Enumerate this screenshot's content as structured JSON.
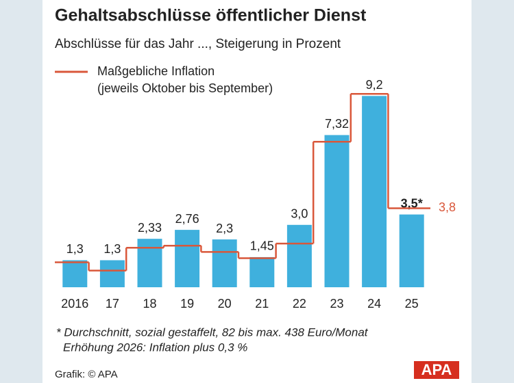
{
  "chart_data": {
    "type": "bar",
    "title": "Gehaltsabschlüsse öffentlicher Dienst",
    "subtitle": "Abschlüsse für das Jahr ..., Steigerung in Prozent",
    "categories": [
      "2016",
      "17",
      "18",
      "19",
      "20",
      "21",
      "22",
      "23",
      "24",
      "25"
    ],
    "series": [
      {
        "name": "Gehaltsabschluss",
        "color": "#3fb0dd",
        "values": [
          1.3,
          1.3,
          2.33,
          2.76,
          2.3,
          1.45,
          3.0,
          7.32,
          9.2,
          3.5
        ],
        "value_labels": [
          "1,3",
          "1,3",
          "2,33",
          "2,76",
          "2,3",
          "1,45",
          "3,0",
          "7,32",
          "9,2",
          "3,5*"
        ]
      },
      {
        "name": "Maßgebliche Inflation",
        "note": "(jeweils Oktober bis September)",
        "color": "#d9573a",
        "values": [
          1.2,
          0.8,
          1.9,
          2.0,
          1.7,
          1.4,
          2.1,
          7.0,
          9.3,
          3.8
        ],
        "end_label": "3,8"
      }
    ],
    "footnotes": [
      "* Durchschnitt, sozial gestaffelt, 82 bis max. 438 Euro/Monat",
      "Erhöhung 2026: Inflation plus 0,3 %"
    ],
    "source": "Grafik: © APA",
    "logo": "APA"
  }
}
